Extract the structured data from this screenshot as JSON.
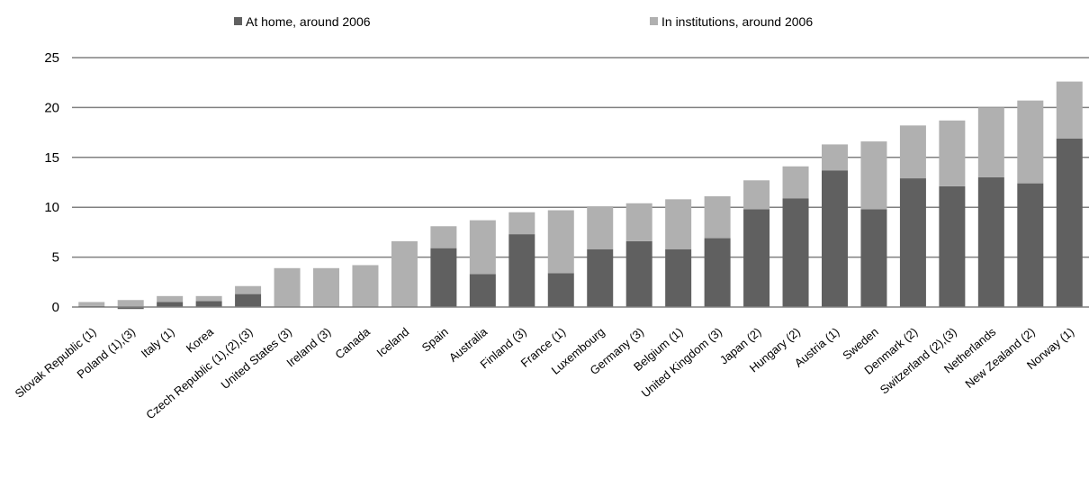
{
  "chart_data": {
    "type": "bar",
    "stacked": true,
    "categories": [
      "Slovak Republic (1)",
      "Poland (1),(3)",
      "Italy (1)",
      "Korea",
      "Czech Republic (1),(2),(3)",
      "United States (3)",
      "Ireland (3)",
      "Canada",
      "Iceland",
      "Spain",
      "Australia",
      "Finland (3)",
      "France (1)",
      "Luxembourg",
      "Germany (3)",
      "Belgium (1)",
      "United Kingdom (3)",
      "Japan (2)",
      "Hungary (2)",
      "Austria (1)",
      "Sweden",
      "Denmark (2)",
      "Switzerland (2),(3)",
      "Netherlands",
      "New Zealand (2)",
      "Norway (1)"
    ],
    "series": [
      {
        "name": "At home, around 2006",
        "color": "#606060",
        "values": [
          0.1,
          -0.2,
          0.5,
          0.6,
          1.3,
          0.0,
          0.0,
          0.0,
          0.0,
          5.9,
          3.3,
          7.3,
          3.4,
          5.8,
          6.6,
          5.8,
          6.9,
          9.8,
          10.9,
          13.7,
          9.8,
          12.9,
          12.1,
          13.0,
          12.4,
          16.9
        ]
      },
      {
        "name": "In institutions, around 2006",
        "color": "#b0b0b0",
        "values": [
          0.4,
          0.7,
          0.6,
          0.5,
          0.8,
          3.9,
          3.9,
          4.2,
          6.6,
          2.2,
          5.4,
          2.2,
          6.3,
          4.3,
          3.8,
          5.0,
          4.2,
          2.9,
          3.2,
          2.6,
          6.8,
          5.3,
          6.6,
          7.0,
          8.3,
          5.7
        ]
      }
    ],
    "ylim": [
      0,
      25
    ],
    "yticks": [
      0,
      5,
      10,
      15,
      20,
      25
    ],
    "grid": true,
    "legend_position": "top"
  }
}
